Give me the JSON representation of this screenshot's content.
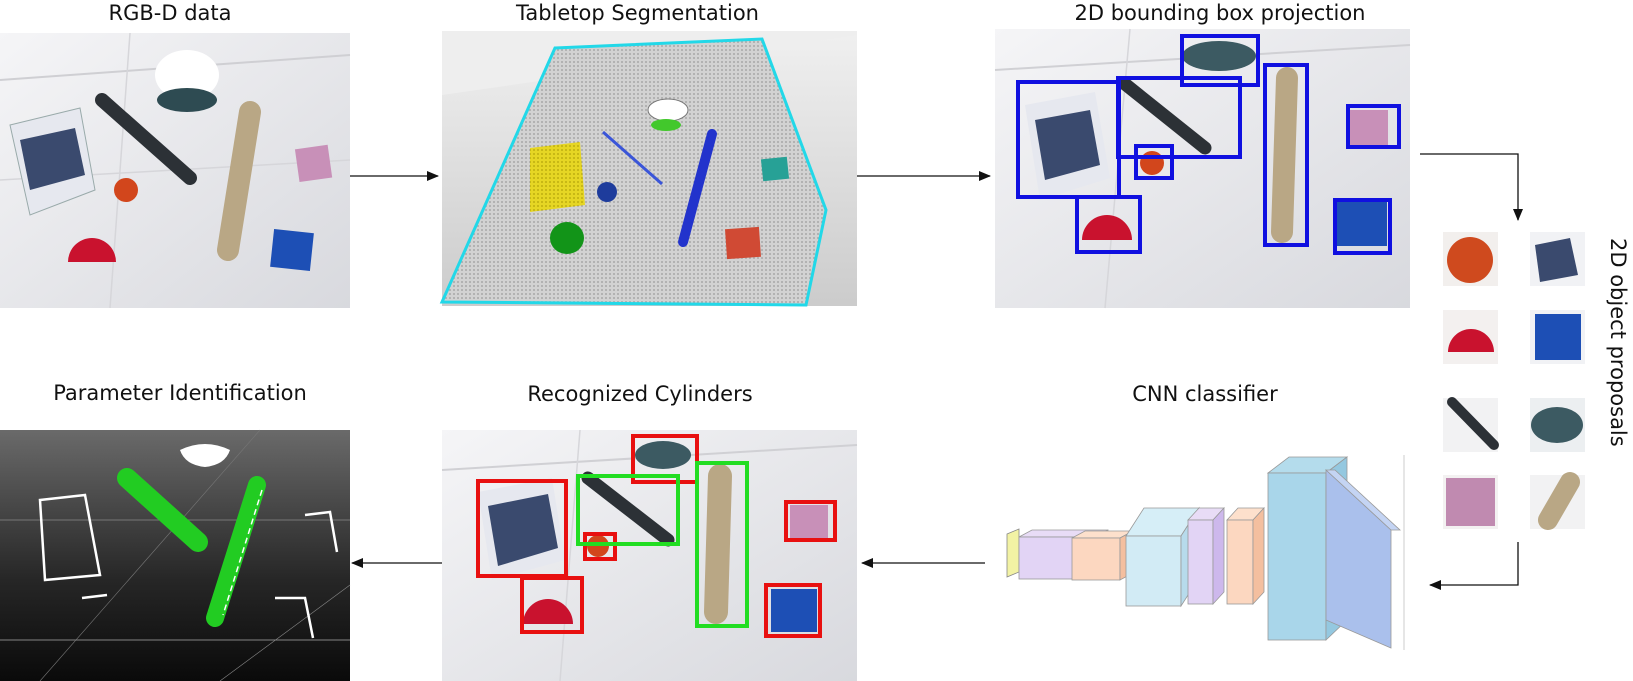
{
  "stages": {
    "rgbd": "RGB-D data",
    "tabletop": "Tabletop Segmentation",
    "bbox_projection": "2D bounding box projection",
    "object_proposals": "2D object proposals",
    "cnn": "CNN classifier",
    "recognized": "Recognized Cylinders",
    "parameter": "Parameter Identification"
  },
  "colors": {
    "proposal_box": "#1010e0",
    "cylinder_box": "#22dd22",
    "non_cylinder_box": "#e81010",
    "table_plane": "#22d8e8",
    "fitted_cylinder": "#22cc22"
  }
}
